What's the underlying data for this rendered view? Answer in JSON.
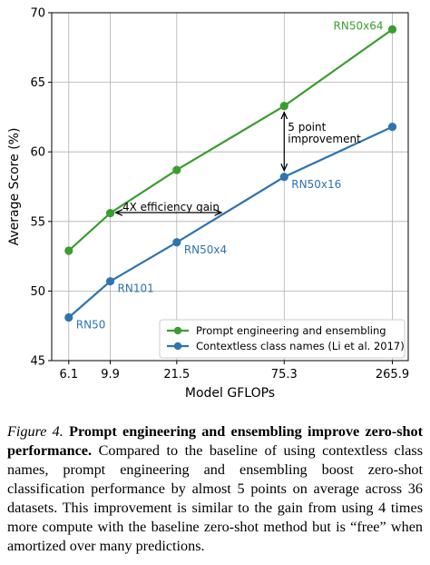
{
  "chart_data": {
    "type": "line",
    "xlabel": "Model GFLOPs",
    "ylabel": "Average Score (%)",
    "ylim": [
      45,
      70
    ],
    "yticks": [
      45,
      50,
      55,
      60,
      65,
      70
    ],
    "x_scale": "log",
    "x": [
      6.1,
      9.9,
      21.5,
      75.3,
      265.9
    ],
    "xtick_labels": [
      "6.1",
      "9.9",
      "21.5",
      "75.3",
      "265.9"
    ],
    "grid": true,
    "legend_position": "lower-right",
    "series": [
      {
        "name": "Prompt engineering and ensembling",
        "color": "#3a9e2f",
        "values": [
          52.9,
          55.6,
          58.7,
          63.3,
          68.8
        ],
        "point_labels": [
          "",
          "",
          "",
          "",
          "RN50x64"
        ]
      },
      {
        "name": "Contextless class names (Li et al. 2017)",
        "color": "#2e74b0",
        "values": [
          48.1,
          50.7,
          53.5,
          58.2,
          61.8
        ],
        "point_labels": [
          "RN50",
          "RN101",
          "RN50x4",
          "RN50x16",
          ""
        ]
      }
    ],
    "annotations": {
      "efficiency": "4X efficiency gain",
      "improvement_line1": "5 point",
      "improvement_line2": "improvement"
    }
  },
  "caption": {
    "label": "Figure 4.",
    "title": "Prompt engineering and ensembling improve zero-shot performance.",
    "body": "Compared to the baseline of using contextless class names, prompt engineering and ensembling boost zero-shot classification performance by almost 5 points on average across 36 datasets. This improvement is similar to the gain from using 4 times more compute with the baseline zero-shot method but is “free” when amortized over many predictions."
  }
}
